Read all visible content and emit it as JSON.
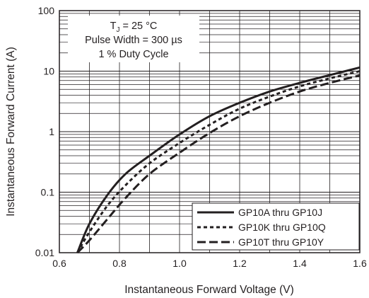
{
  "chart_data": {
    "type": "line",
    "xlabel": "Instantaneous Forward Voltage (V)",
    "ylabel": "Instantaneous Forward Current (A)",
    "xlim": [
      0.6,
      1.6
    ],
    "ylim": [
      0.01,
      100
    ],
    "yscale": "log",
    "grid": true,
    "x_ticks": [
      "0.6",
      "0.8",
      "1.0",
      "1.2",
      "1.4",
      "1.6"
    ],
    "y_ticks": [
      "0.01",
      "0.1",
      "1",
      "10",
      "100"
    ],
    "annotation": {
      "line1_main": "T",
      "line1_sub": "J",
      "line1_rest": " = 25 °C",
      "line2": "Pulse Width = 300 µs",
      "line3": "1 % Duty Cycle"
    },
    "legend_position": "bottom-right",
    "series": [
      {
        "name": "GP10A thru GP10J",
        "style": "solid",
        "x": [
          0.66,
          0.7,
          0.76,
          0.82,
          0.9,
          1.0,
          1.1,
          1.2,
          1.3,
          1.4,
          1.5,
          1.6
        ],
        "y": [
          0.01,
          0.03,
          0.09,
          0.2,
          0.4,
          0.9,
          1.8,
          3.0,
          4.6,
          6.4,
          8.6,
          11.5
        ]
      },
      {
        "name": "GP10K thru GP10Q",
        "style": "dotted",
        "x": [
          0.66,
          0.7,
          0.76,
          0.82,
          0.9,
          1.0,
          1.1,
          1.2,
          1.3,
          1.4,
          1.5,
          1.6
        ],
        "y": [
          0.01,
          0.022,
          0.06,
          0.13,
          0.3,
          0.65,
          1.3,
          2.4,
          3.8,
          5.6,
          7.6,
          10.0
        ]
      },
      {
        "name": "GP10T thru GP10Y",
        "style": "dashed",
        "x": [
          0.66,
          0.7,
          0.76,
          0.82,
          0.9,
          1.0,
          1.1,
          1.2,
          1.3,
          1.4,
          1.5,
          1.6
        ],
        "y": [
          0.01,
          0.016,
          0.036,
          0.08,
          0.2,
          0.45,
          0.95,
          1.8,
          3.0,
          4.6,
          6.4,
          8.5
        ]
      }
    ]
  },
  "colors": {
    "line": "#231f20",
    "grid": "#231f20"
  }
}
